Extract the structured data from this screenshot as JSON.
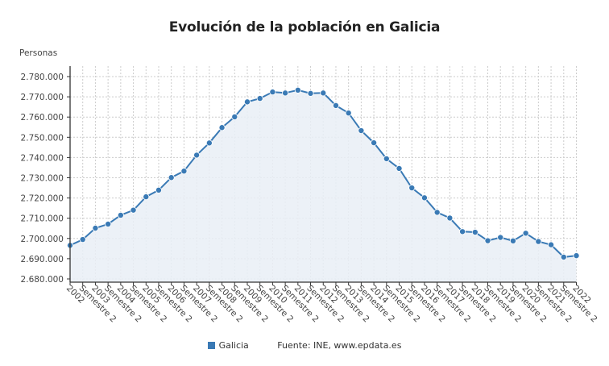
{
  "header": {
    "title": "Evolución de la población en Galicia"
  },
  "axis": {
    "y_unit_label": "Personas"
  },
  "legend": {
    "series_label": "Galicia",
    "source": "Fuente: INE, www.epdata.es"
  },
  "colors": {
    "series": "#3a7ab5",
    "fill": "#e9eef6",
    "grid": "#cccccc",
    "axis": "#333333"
  },
  "chart_data": {
    "type": "area",
    "title": "Evolución de la población en Galicia",
    "xlabel": "",
    "ylabel": "Personas",
    "ylim": [
      2680000,
      2780000
    ],
    "yticks": [
      2680000,
      2690000,
      2700000,
      2710000,
      2720000,
      2730000,
      2740000,
      2750000,
      2760000,
      2770000,
      2780000
    ],
    "ytick_labels": [
      "2.680.000",
      "2.690.000",
      "2.700.000",
      "2.710.000",
      "2.720.000",
      "2.730.000",
      "2.740.000",
      "2.750.000",
      "2.760.000",
      "2.770.000",
      "2.780.000"
    ],
    "grid": true,
    "legend_position": "bottom",
    "categories": [
      "2002",
      "Semestre 2",
      "2003",
      "Semestre 2",
      "2004",
      "Semestre 2",
      "2005",
      "Semestre 2",
      "2006",
      "Semestre 2",
      "2007",
      "Semestre 2",
      "2008",
      "Semestre 2",
      "2009",
      "Semestre 2",
      "2010",
      "Semestre 2",
      "2011",
      "Semestre 2",
      "2012",
      "Semestre 2",
      "2013",
      "Semestre 2",
      "2014",
      "Semestre 2",
      "2015",
      "Semestre 2",
      "2016",
      "Semestre 2",
      "2017",
      "Semestre 2",
      "2018",
      "Semestre 2",
      "2019",
      "Semestre 2",
      "2020",
      "Semestre 2",
      "2021",
      "Semestre 2",
      "2022"
    ],
    "series": [
      {
        "name": "Galicia",
        "values": [
          2696600,
          2699500,
          2705100,
          2707100,
          2711500,
          2714000,
          2720600,
          2723900,
          2730100,
          2733300,
          2741200,
          2747200,
          2754800,
          2760100,
          2767500,
          2769200,
          2772400,
          2771900,
          2773300,
          2771700,
          2771900,
          2765700,
          2762000,
          2753300,
          2747300,
          2739400,
          2734600,
          2725000,
          2720100,
          2712900,
          2710100,
          2703400,
          2703100,
          2698900,
          2700500,
          2698800,
          2702600,
          2698500,
          2696900,
          2690800,
          2691500
        ]
      }
    ]
  }
}
